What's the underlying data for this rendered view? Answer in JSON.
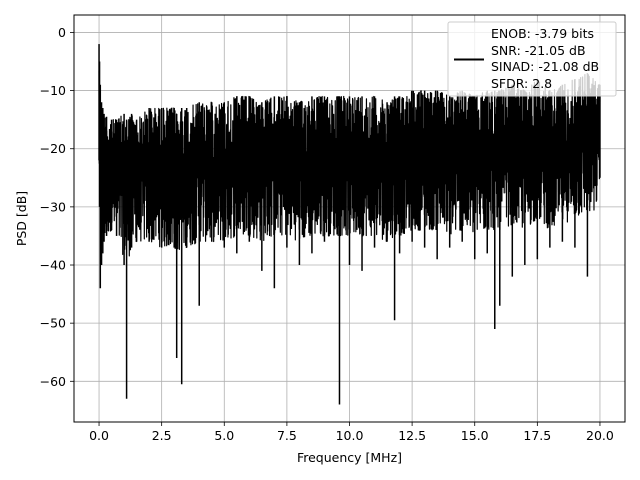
{
  "chart_data": {
    "type": "line",
    "title": "",
    "xlabel": "Frequency [MHz]",
    "ylabel": "PSD [dB]",
    "xlim": [
      -1.0,
      21.0
    ],
    "ylim": [
      -67.0,
      3.0
    ],
    "xticks": [
      0.0,
      2.5,
      5.0,
      7.5,
      10.0,
      12.5,
      15.0,
      17.5,
      20.0
    ],
    "xtick_labels": [
      "0.0",
      "2.5",
      "5.0",
      "7.5",
      "10.0",
      "12.5",
      "15.0",
      "17.5",
      "20.0"
    ],
    "yticks": [
      0,
      -10,
      -20,
      -30,
      -40,
      -50,
      -60
    ],
    "ytick_labels": [
      "0",
      "−10",
      "−20",
      "−30",
      "−40",
      "−50",
      "−60"
    ],
    "grid": true,
    "legend_position": "top-right",
    "legend_lines": [
      "ENOB: -3.79 bits",
      "SNR: -21.05 dB",
      "SINAD: -21.08 dB",
      "SFDR: 2.8"
    ],
    "series": [
      {
        "color": "#000000",
        "x": [
          0.0,
          0.02,
          0.05,
          0.1,
          0.15,
          0.2,
          0.3,
          0.5,
          0.7,
          1.0,
          1.1,
          1.3,
          1.5,
          2.0,
          2.5,
          3.0,
          3.1,
          3.3,
          3.5,
          4.0,
          4.5,
          5.0,
          5.5,
          6.0,
          6.5,
          7.0,
          7.5,
          8.0,
          8.5,
          9.0,
          9.6,
          10.0,
          10.5,
          11.0,
          11.5,
          11.8,
          12.0,
          12.5,
          13.0,
          13.5,
          14.0,
          14.5,
          15.0,
          15.5,
          15.8,
          16.0,
          16.5,
          17.0,
          17.5,
          18.0,
          18.5,
          19.0,
          19.5,
          20.0
        ],
        "y_upper": [
          -2,
          -5,
          -9,
          -12,
          -13,
          -14,
          -14.5,
          -15,
          -15,
          -14,
          -15,
          -14,
          -15,
          -13,
          -13,
          -13,
          -14,
          -13,
          -13,
          -12,
          -12,
          -12,
          -11,
          -11,
          -12,
          -11,
          -11,
          -12,
          -11,
          -11,
          -11,
          -11,
          -11,
          -11,
          -12,
          -11,
          -11,
          -10,
          -10,
          -10,
          -11,
          -10,
          -11,
          -10,
          -10,
          -10,
          -9,
          -10,
          -8,
          -10,
          -9,
          -8,
          -7,
          -9
        ],
        "y_lower": [
          -22,
          -30,
          -44,
          -40,
          -38,
          -36,
          -35,
          -34,
          -35,
          -40,
          -63,
          -37,
          -36,
          -36,
          -37,
          -37,
          -56,
          -60.5,
          -37,
          -47,
          -36,
          -37,
          -38,
          -36,
          -41,
          -44,
          -37,
          -40,
          -38,
          -36,
          -64,
          -40,
          -41,
          -37,
          -36,
          -49.5,
          -38,
          -36,
          -37,
          -39,
          -37,
          -36,
          -39,
          -38,
          -51,
          -47,
          -42,
          -40,
          -39,
          -37,
          -36,
          -37,
          -42,
          -25
        ]
      }
    ]
  }
}
